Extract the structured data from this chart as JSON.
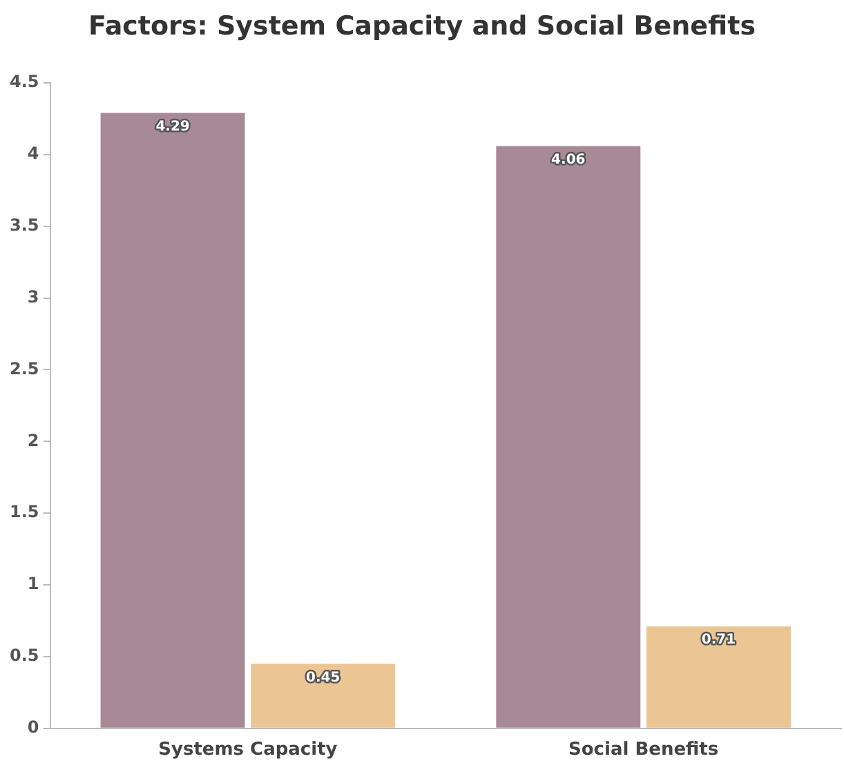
{
  "chart_data": {
    "type": "bar",
    "title": "Factors: System Capacity and Social Benefits",
    "categories": [
      "Systems Capacity",
      "Social Benefits"
    ],
    "series": [
      {
        "color": "#a88a96",
        "values": [
          4.29,
          4.06
        ]
      },
      {
        "color": "#ecc594",
        "values": [
          0.45,
          0.71
        ]
      }
    ],
    "ylim": [
      0,
      4.5
    ],
    "yticks": [
      0,
      0.5,
      1,
      1.5,
      2,
      2.5,
      3,
      3.5,
      4,
      4.5
    ],
    "grid": false,
    "legend": false,
    "data_labels": true
  }
}
